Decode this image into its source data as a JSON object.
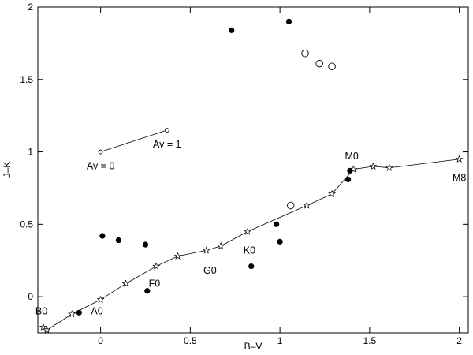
{
  "chart_data": {
    "type": "scatter",
    "xlabel": "B–V",
    "ylabel": "J–K",
    "xlim": [
      -0.35,
      2.05
    ],
    "ylim": [
      -0.25,
      2.0
    ],
    "xticks": [
      {
        "value": 0,
        "label": "0"
      },
      {
        "value": 0.5,
        "label": "0.5"
      },
      {
        "value": 1,
        "label": "1"
      },
      {
        "value": 1.5,
        "label": "1.5"
      },
      {
        "value": 2,
        "label": "2"
      }
    ],
    "yticks": [
      {
        "value": 0,
        "label": "0"
      },
      {
        "value": 0.5,
        "label": "0.5"
      },
      {
        "value": 1,
        "label": "1"
      },
      {
        "value": 1.5,
        "label": "1.5"
      },
      {
        "value": 2,
        "label": "2"
      }
    ],
    "grid": false,
    "series": [
      {
        "marker": "star-line",
        "points": [
          [
            -0.32,
            -0.21
          ],
          [
            -0.3,
            -0.23
          ],
          [
            -0.16,
            -0.12
          ],
          [
            0.0,
            -0.02
          ],
          [
            0.14,
            0.09
          ],
          [
            0.31,
            0.21
          ],
          [
            0.43,
            0.28
          ],
          [
            0.59,
            0.32
          ],
          [
            0.67,
            0.35
          ],
          [
            0.82,
            0.45
          ],
          [
            1.15,
            0.63
          ],
          [
            1.29,
            0.71
          ],
          [
            1.41,
            0.88
          ],
          [
            1.52,
            0.9
          ],
          [
            1.61,
            0.89
          ],
          [
            2.0,
            0.95
          ]
        ]
      },
      {
        "marker": "filled-circle",
        "points": [
          [
            -0.12,
            -0.11
          ],
          [
            0.01,
            0.42
          ],
          [
            0.1,
            0.39
          ],
          [
            0.25,
            0.36
          ],
          [
            0.26,
            0.04
          ],
          [
            0.73,
            1.84
          ],
          [
            0.84,
            0.21
          ],
          [
            0.98,
            0.5
          ],
          [
            1.0,
            0.38
          ],
          [
            1.05,
            1.9
          ],
          [
            1.38,
            0.81
          ],
          [
            1.39,
            0.87
          ]
        ]
      },
      {
        "marker": "open-circle",
        "points": [
          [
            1.14,
            1.68
          ],
          [
            1.22,
            1.61
          ],
          [
            1.29,
            1.59
          ],
          [
            1.06,
            0.63
          ]
        ]
      }
    ],
    "reddening_vector": {
      "from": [
        0.0,
        1.0
      ],
      "to": [
        0.37,
        1.15
      ],
      "start_label": "Av = 0",
      "end_label": "Av = 1"
    },
    "annotations": [
      {
        "text": "B0",
        "x": -0.33,
        "y": -0.1
      },
      {
        "text": "A0",
        "x": -0.02,
        "y": -0.1
      },
      {
        "text": "F0",
        "x": 0.3,
        "y": 0.09
      },
      {
        "text": "G0",
        "x": 0.61,
        "y": 0.18
      },
      {
        "text": "K0",
        "x": 0.83,
        "y": 0.32
      },
      {
        "text": "M0",
        "x": 1.4,
        "y": 0.97
      },
      {
        "text": "M8",
        "x": 2.0,
        "y": 0.82
      }
    ]
  }
}
